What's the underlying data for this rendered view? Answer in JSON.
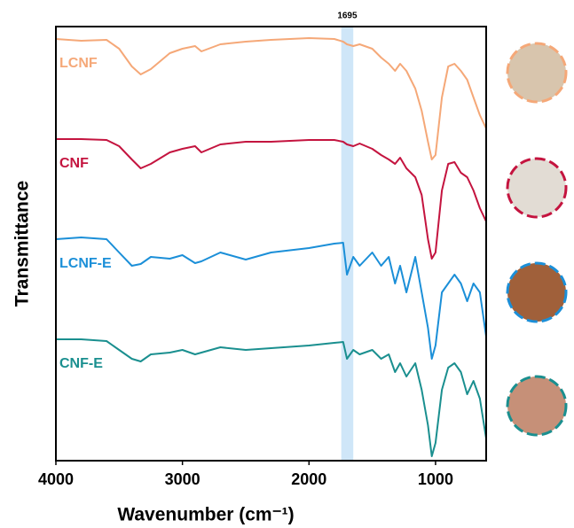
{
  "chart_data": {
    "type": "line",
    "x_label": "Wavenumber (cm⁻¹)",
    "y_label": "Transmittance",
    "xlim": [
      4000,
      600
    ],
    "ylim": [
      0,
      490
    ],
    "xticks": [
      4000,
      3000,
      2000,
      1000
    ],
    "highlight": {
      "from": 1745,
      "to": 1650,
      "label": "1695",
      "color": "#cfe6f8"
    },
    "x": [
      4000,
      3800,
      3600,
      3500,
      3400,
      3330,
      3250,
      3100,
      3000,
      2900,
      2850,
      2700,
      2500,
      2300,
      2000,
      1800,
      1730,
      1700,
      1650,
      1600,
      1500,
      1430,
      1370,
      1320,
      1280,
      1230,
      1160,
      1110,
      1060,
      1030,
      1000,
      950,
      900,
      850,
      800,
      750,
      700,
      650,
      600
    ],
    "series": [
      {
        "name": "LCNF",
        "color": "#f5a878",
        "values": [
          476,
          474,
          475,
          465,
          445,
          436,
          442,
          460,
          465,
          468,
          462,
          470,
          473,
          475,
          477,
          476,
          473,
          470,
          468,
          470,
          465,
          455,
          448,
          440,
          448,
          440,
          420,
          395,
          360,
          340,
          345,
          410,
          445,
          448,
          440,
          430,
          410,
          390,
          375
        ]
      },
      {
        "name": "CNF",
        "color": "#c4143f",
        "values": [
          363,
          363,
          362,
          355,
          340,
          330,
          335,
          348,
          352,
          355,
          348,
          357,
          360,
          360,
          362,
          362,
          360,
          357,
          355,
          358,
          352,
          345,
          340,
          335,
          342,
          330,
          320,
          300,
          250,
          228,
          235,
          305,
          335,
          337,
          325,
          320,
          305,
          285,
          270
        ]
      },
      {
        "name": "LCNF-E",
        "color": "#1b8fd8",
        "values": [
          250,
          252,
          250,
          235,
          220,
          222,
          230,
          228,
          232,
          223,
          225,
          235,
          227,
          235,
          240,
          245,
          246,
          210,
          230,
          220,
          235,
          220,
          230,
          200,
          220,
          190,
          230,
          190,
          150,
          115,
          130,
          190,
          200,
          210,
          200,
          180,
          200,
          190,
          140
        ]
      },
      {
        "name": "CNF-E",
        "color": "#1a8f8f",
        "values": [
          137,
          137,
          135,
          125,
          115,
          112,
          120,
          122,
          125,
          120,
          122,
          128,
          125,
          127,
          130,
          133,
          134,
          115,
          125,
          120,
          125,
          115,
          120,
          100,
          110,
          95,
          110,
          80,
          40,
          5,
          20,
          80,
          105,
          110,
          100,
          75,
          90,
          70,
          25
        ]
      }
    ]
  }
}
